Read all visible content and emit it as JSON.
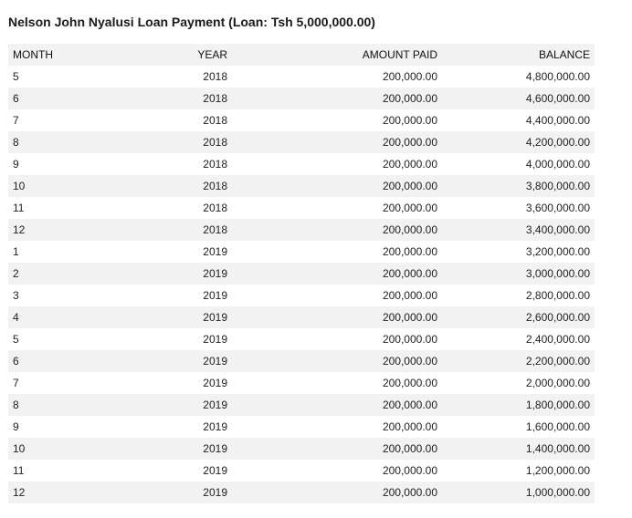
{
  "title": "Nelson John Nyalusi Loan Payment (Loan: Tsh 5,000,000.00)",
  "table": {
    "headers": [
      "MONTH",
      "YEAR",
      "AMOUNT PAID",
      "BALANCE"
    ],
    "rows": [
      [
        "5",
        "2018",
        "200,000.00",
        "4,800,000.00"
      ],
      [
        "6",
        "2018",
        "200,000.00",
        "4,600,000.00"
      ],
      [
        "7",
        "2018",
        "200,000.00",
        "4,400,000.00"
      ],
      [
        "8",
        "2018",
        "200,000.00",
        "4,200,000.00"
      ],
      [
        "9",
        "2018",
        "200,000.00",
        "4,000,000.00"
      ],
      [
        "10",
        "2018",
        "200,000.00",
        "3,800,000.00"
      ],
      [
        "11",
        "2018",
        "200,000.00",
        "3,600,000.00"
      ],
      [
        "12",
        "2018",
        "200,000.00",
        "3,400,000.00"
      ],
      [
        "1",
        "2019",
        "200,000.00",
        "3,200,000.00"
      ],
      [
        "2",
        "2019",
        "200,000.00",
        "3,000,000.00"
      ],
      [
        "3",
        "2019",
        "200,000.00",
        "2,800,000.00"
      ],
      [
        "4",
        "2019",
        "200,000.00",
        "2,600,000.00"
      ],
      [
        "5",
        "2019",
        "200,000.00",
        "2,400,000.00"
      ],
      [
        "6",
        "2019",
        "200,000.00",
        "2,200,000.00"
      ],
      [
        "7",
        "2019",
        "200,000.00",
        "2,000,000.00"
      ],
      [
        "8",
        "2019",
        "200,000.00",
        "1,800,000.00"
      ],
      [
        "9",
        "2019",
        "200,000.00",
        "1,600,000.00"
      ],
      [
        "10",
        "2019",
        "200,000.00",
        "1,400,000.00"
      ],
      [
        "11",
        "2019",
        "200,000.00",
        "1,200,000.00"
      ],
      [
        "12",
        "2019",
        "200,000.00",
        "1,000,000.00"
      ]
    ]
  },
  "colors": {
    "stripe": "#f2f2f2",
    "text": "#222222"
  }
}
